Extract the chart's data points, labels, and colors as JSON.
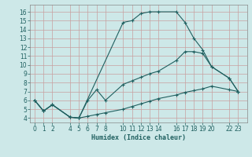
{
  "xlabel": "Humidex (Indice chaleur)",
  "bg_color": "#cde8e8",
  "grid_color": "#b8d8d8",
  "line_color": "#206060",
  "xticks": [
    0,
    1,
    2,
    4,
    5,
    6,
    7,
    8,
    10,
    11,
    12,
    13,
    14,
    16,
    17,
    18,
    19,
    20,
    22,
    23
  ],
  "yticks": [
    4,
    5,
    6,
    7,
    8,
    9,
    10,
    11,
    12,
    13,
    14,
    15,
    16
  ],
  "xlim": [
    -0.5,
    24.0
  ],
  "ylim": [
    3.5,
    16.8
  ],
  "top_x": [
    0,
    1,
    2,
    4,
    5,
    10,
    11,
    12,
    13,
    14,
    16,
    17,
    18,
    19,
    20,
    22,
    23
  ],
  "top_y": [
    6.0,
    4.8,
    5.5,
    4.1,
    4.0,
    14.8,
    15.0,
    15.8,
    16.0,
    16.0,
    16.0,
    14.8,
    13.0,
    11.7,
    9.8,
    8.5,
    7.0
  ],
  "mid_x": [
    0,
    1,
    2,
    4,
    5,
    6,
    7,
    8,
    10,
    11,
    12,
    13,
    14,
    16,
    17,
    18,
    19,
    20,
    22,
    23
  ],
  "mid_y": [
    6.0,
    4.8,
    5.5,
    4.1,
    4.0,
    6.0,
    7.2,
    6.0,
    7.8,
    8.2,
    8.6,
    9.0,
    9.3,
    10.5,
    11.5,
    11.5,
    11.3,
    9.8,
    8.5,
    7.0
  ],
  "bot_x": [
    0,
    1,
    2,
    4,
    5,
    6,
    7,
    8,
    10,
    11,
    12,
    13,
    14,
    16,
    17,
    18,
    19,
    20,
    22,
    23
  ],
  "bot_y": [
    6.0,
    4.8,
    5.5,
    4.1,
    4.0,
    4.2,
    4.4,
    4.6,
    5.0,
    5.3,
    5.6,
    5.9,
    6.2,
    6.6,
    6.9,
    7.1,
    7.3,
    7.6,
    7.2,
    7.0
  ]
}
